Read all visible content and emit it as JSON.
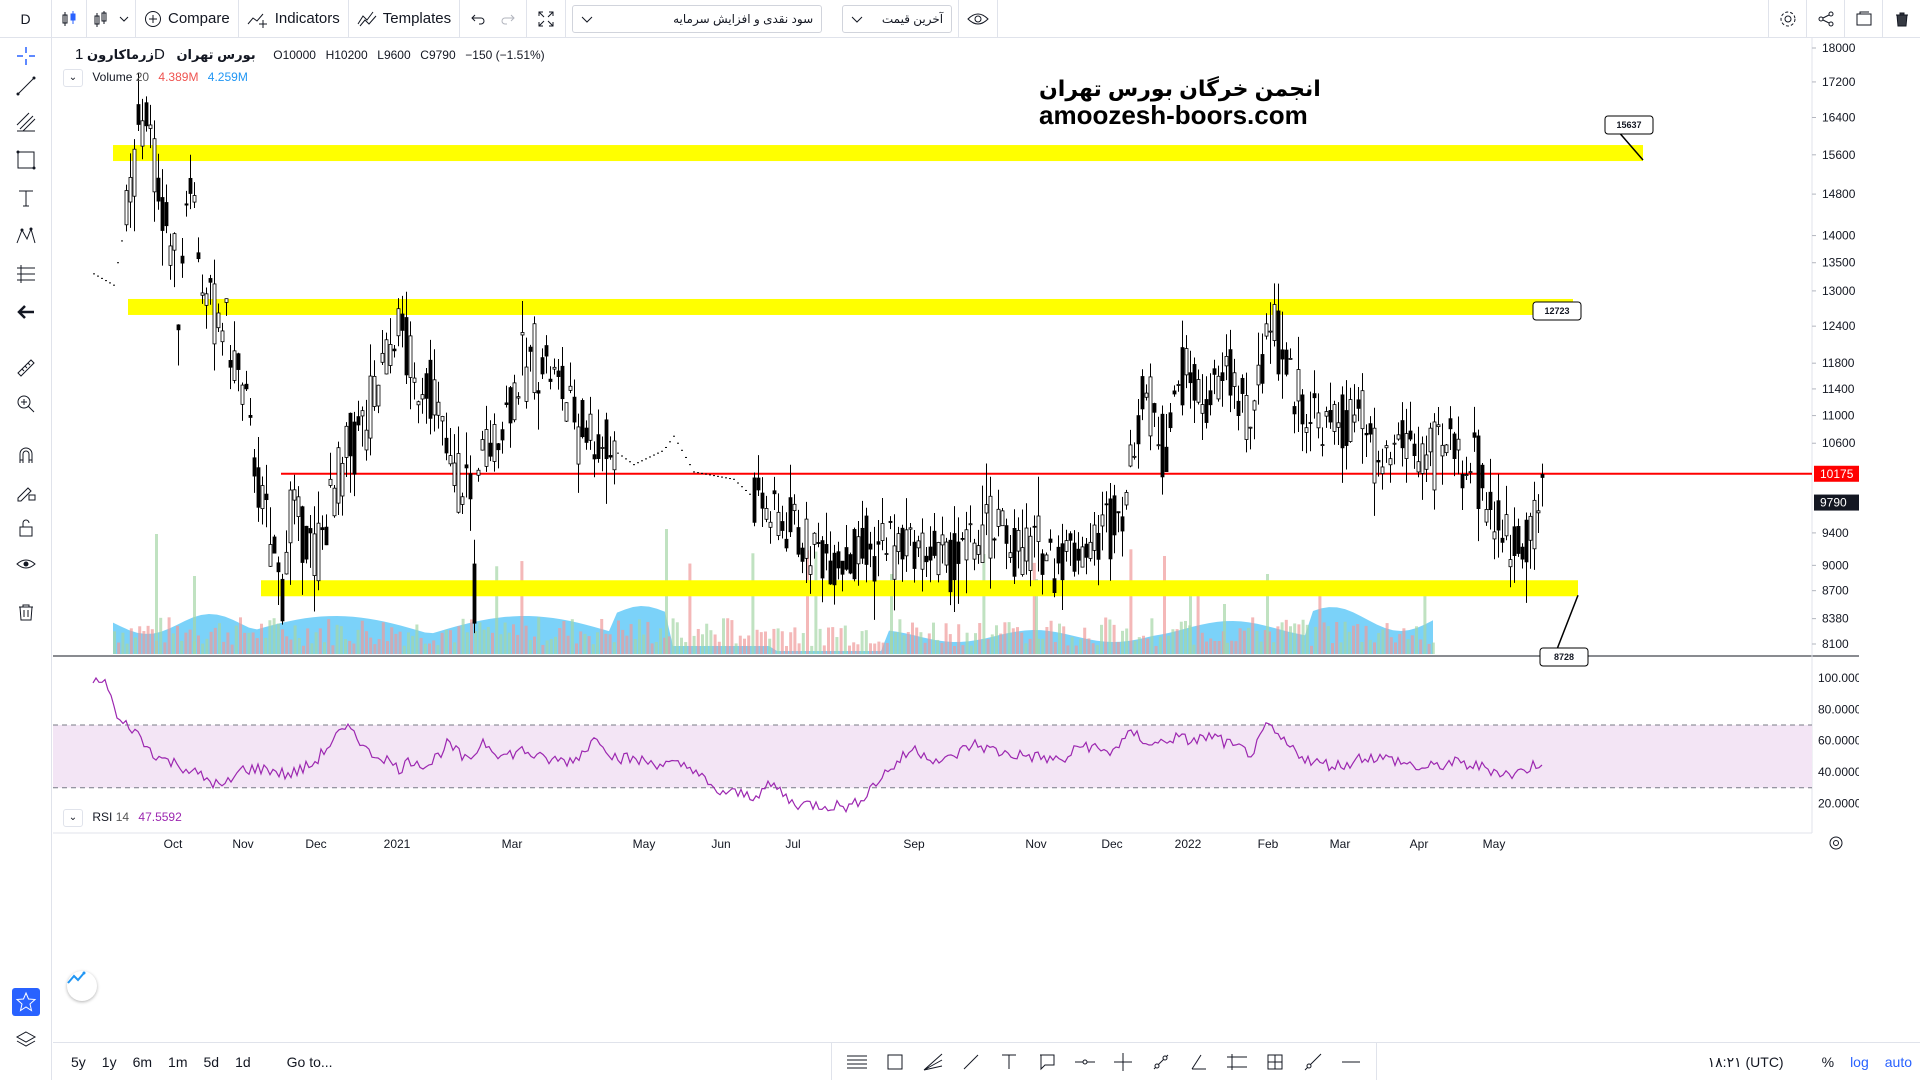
{
  "toolbar": {
    "interval": "D",
    "compare": "Compare",
    "indicators": "Indicators",
    "templates": "Templates",
    "layout_dropdown": "سود نقدی و افزایش سرمایه",
    "price_dropdown": "آخرین قیمت"
  },
  "legend": {
    "symbol": "زرماکارون",
    "timeframe": "1D",
    "exchange": "بورس تهران",
    "open_label": "O",
    "open": "10000",
    "high_label": "H",
    "high": "10200",
    "low_label": "L",
    "low": "9600",
    "close_label": "C",
    "close": "9790",
    "change": "−150 (−1.51%)",
    "volume_label": "Volume",
    "volume_length": "20",
    "volume_value": "4.389M",
    "volume_ma": "4.259M",
    "rsi_label": "RSI",
    "rsi_length": "14",
    "rsi_value": "47.5592"
  },
  "watermark": {
    "line1": "انجمن خرگان  بورس تهران",
    "line2": "amoozesh-boors.com"
  },
  "price_axis": {
    "ticks": [
      "18000",
      "17200",
      "16400",
      "15600",
      "14800",
      "14000",
      "13500",
      "13000",
      "12400",
      "11800",
      "11400",
      "11000",
      "10600",
      "9400",
      "9000",
      "8700",
      "8380",
      "8100"
    ],
    "current_price": "9790",
    "line_price": "10175"
  },
  "rsi_axis": {
    "ticks": [
      "100.0000",
      "80.0000",
      "60.0000",
      "40.0000",
      "20.0000"
    ]
  },
  "time_axis": {
    "labels": [
      "Oct",
      "Nov",
      "Dec",
      "2021",
      "Mar",
      "May",
      "Jun",
      "Jul",
      "Sep",
      "Nov",
      "Dec",
      "2022",
      "Feb",
      "Mar",
      "Apr",
      "May"
    ]
  },
  "annotations": {
    "callout_top": "15637",
    "callout_mid": "12723",
    "callout_low": "8728"
  },
  "bottombar": {
    "ranges": [
      "5y",
      "1y",
      "6m",
      "1m",
      "5d",
      "1d"
    ],
    "goto": "Go to...",
    "time": "۱۸:۲۱ (UTC)",
    "percent": "%",
    "log": "log",
    "auto": "auto"
  },
  "chart_data": {
    "type": "candlestick",
    "symbol": "زرماکارون",
    "timeframe": "1D",
    "ohlc_last": {
      "open": 10000,
      "high": 10200,
      "low": 9600,
      "close": 9790
    },
    "horizontal_levels": [
      15637,
      12723,
      10175,
      8728
    ],
    "price_range": [
      8000,
      18300
    ],
    "rsi_range": [
      0,
      100
    ],
    "rsi_bands": [
      30,
      70
    ],
    "colors": {
      "up": "#000000",
      "down": "#000000",
      "level_zone": "#ffff00",
      "level_line": "#ff0000",
      "rsi": "#9c27b0",
      "rsi_band": "#f3e5f5",
      "volume_ma": "#4fc3f7",
      "volume_up": "#a5d6a7",
      "volume_down": "#ef9a9a"
    }
  }
}
